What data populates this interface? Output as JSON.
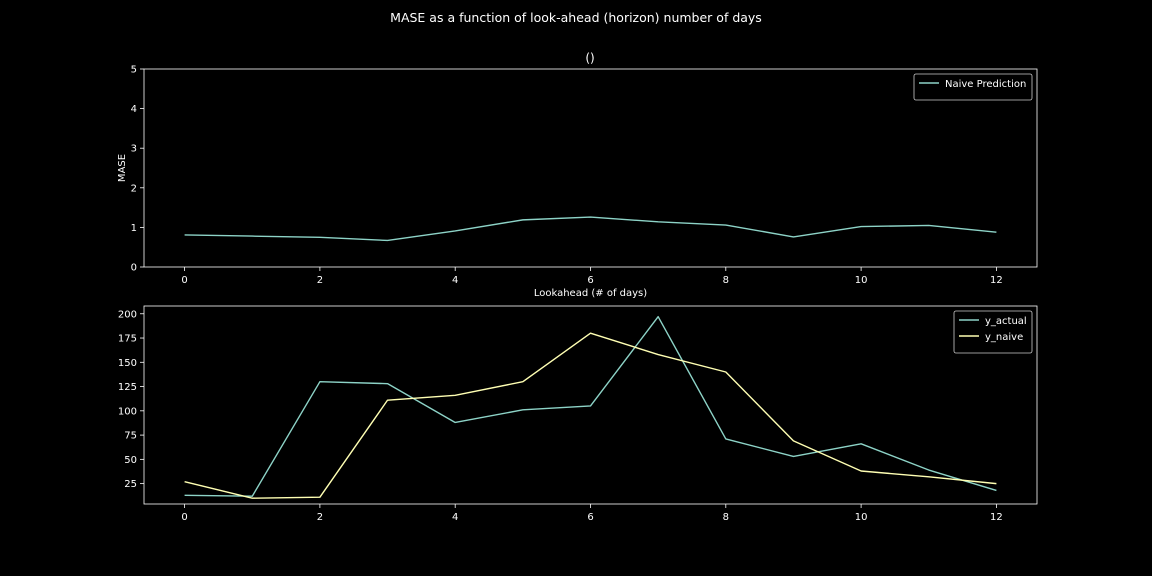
{
  "figure_title": "MASE as a function of look-ahead (horizon) number of days",
  "colors": {
    "background": "#000000",
    "axes": "#ffffff",
    "series_teal": "#8dd3c7",
    "series_yellow": "#ffffb3"
  },
  "chart_data": [
    {
      "type": "line",
      "title": "()",
      "xlabel": "Lookahead (# of days)",
      "ylabel": "MASE",
      "xlim": [
        -0.6,
        12.6
      ],
      "ylim": [
        0,
        5
      ],
      "xticks": [
        0,
        2,
        4,
        6,
        8,
        10,
        12
      ],
      "yticks": [
        0,
        1,
        2,
        3,
        4,
        5
      ],
      "grid": false,
      "legend": "top-right",
      "x": [
        0,
        1,
        2,
        3,
        4,
        5,
        6,
        7,
        8,
        9,
        10,
        11,
        12
      ],
      "series": [
        {
          "name": "Naive Prediction",
          "color": "#8dd3c7",
          "values": [
            0.81,
            0.78,
            0.75,
            0.67,
            0.91,
            1.19,
            1.26,
            1.14,
            1.06,
            0.76,
            1.02,
            1.05,
            0.88
          ]
        }
      ]
    },
    {
      "type": "line",
      "title": "",
      "xlabel": "",
      "ylabel": "",
      "xlim": [
        -0.6,
        12.6
      ],
      "ylim": [
        4,
        208
      ],
      "xticks": [
        0,
        2,
        4,
        6,
        8,
        10,
        12
      ],
      "yticks": [
        25,
        50,
        75,
        100,
        125,
        150,
        175,
        200
      ],
      "grid": false,
      "legend": "top-right",
      "x": [
        0,
        1,
        2,
        3,
        4,
        5,
        6,
        7,
        8,
        9,
        10,
        11,
        12
      ],
      "series": [
        {
          "name": "y_actual",
          "color": "#8dd3c7",
          "values": [
            13,
            12,
            130,
            128,
            88,
            101,
            105,
            197,
            71,
            53,
            66,
            39,
            18
          ]
        },
        {
          "name": "y_naive",
          "color": "#ffffb3",
          "values": [
            27,
            10,
            11,
            111,
            116,
            130,
            180,
            158,
            140,
            69,
            38,
            32,
            25
          ]
        }
      ]
    }
  ]
}
